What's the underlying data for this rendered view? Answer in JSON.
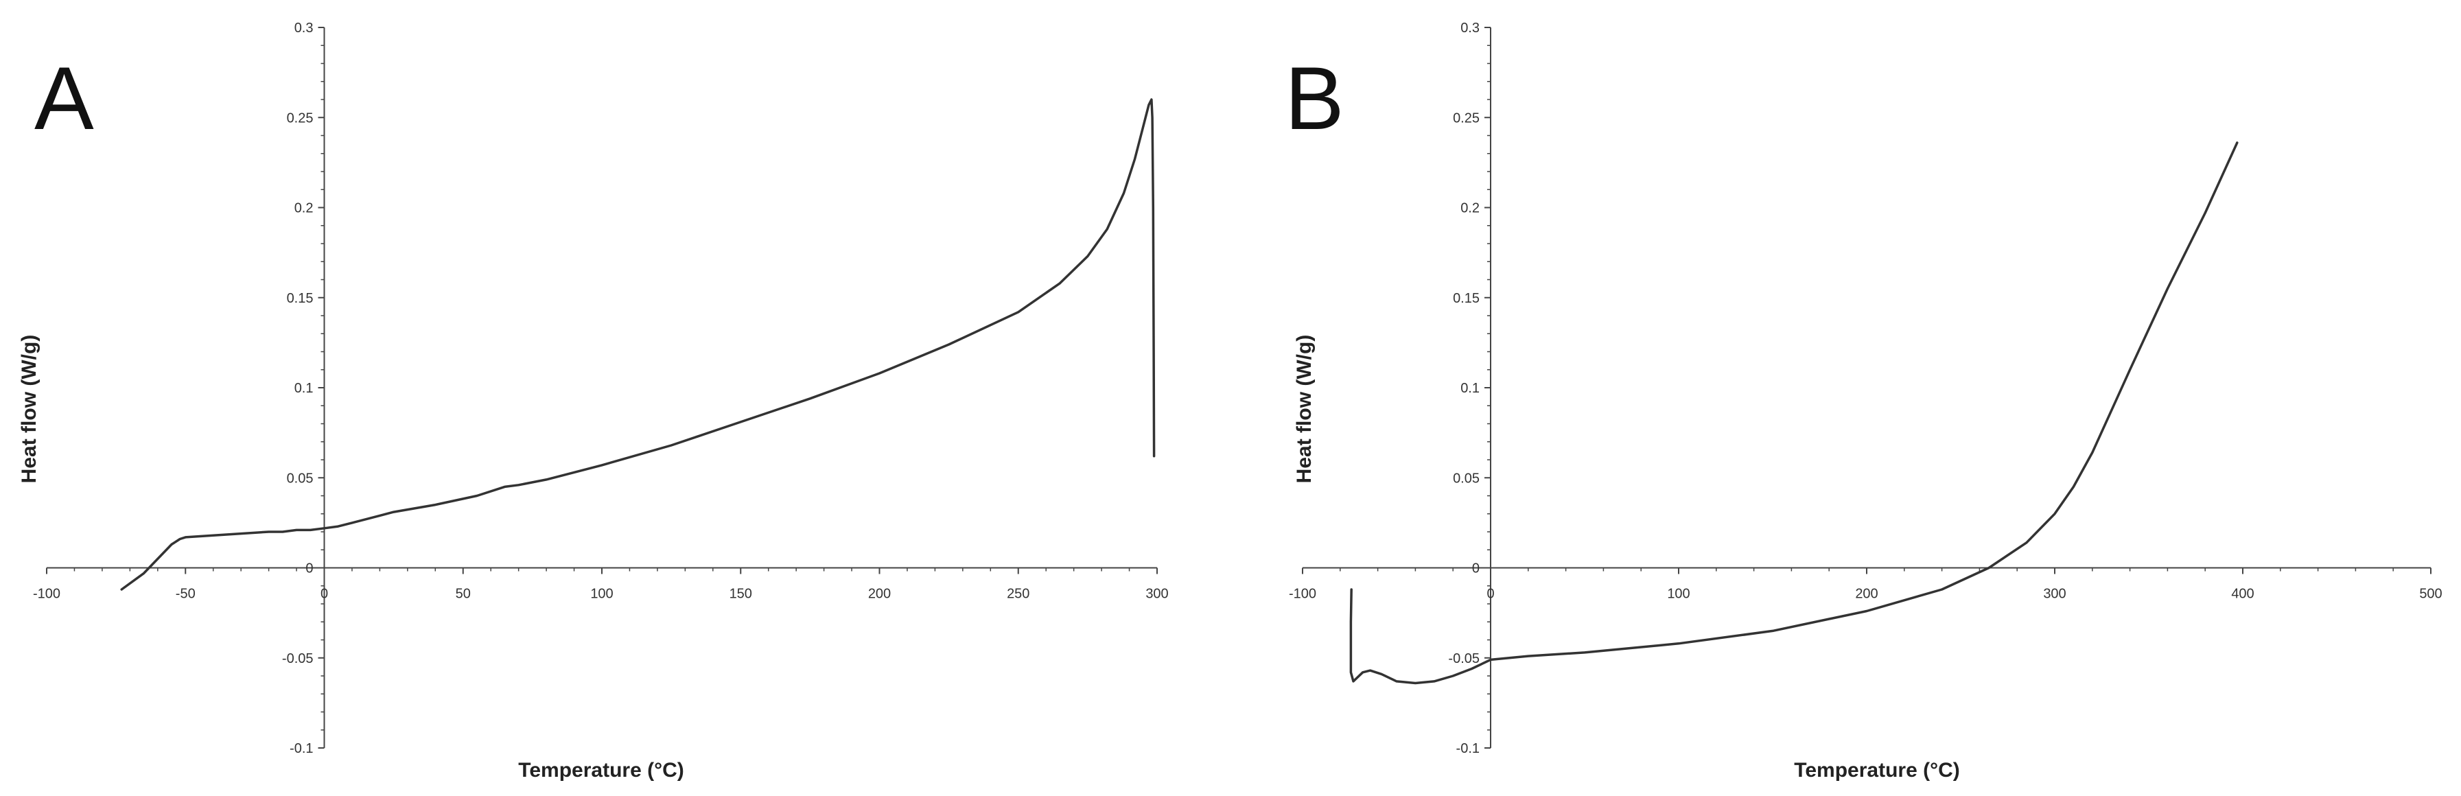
{
  "chart_data": [
    {
      "type": "line",
      "panel_label": "A",
      "xlabel": "Temperature (°C)",
      "ylabel": "Heat flow (W/g)",
      "xlim": [
        -100,
        300
      ],
      "ylim": [
        -0.1,
        0.3
      ],
      "x_ticks": [
        -100,
        -50,
        0,
        50,
        100,
        150,
        200,
        250,
        300
      ],
      "y_ticks": [
        -0.1,
        -0.05,
        0,
        0.05,
        0.1,
        0.15,
        0.2,
        0.25,
        0.3
      ],
      "x_tick_labels": [
        "-100",
        "-50",
        "0",
        "50",
        "100",
        "150",
        "200",
        "250",
        "300"
      ],
      "y_tick_labels": [
        "-0.1",
        "-0.05",
        "0",
        "0.05",
        "0.1",
        "0.15",
        "0.2",
        "0.25",
        "0.3"
      ],
      "grid": false,
      "line_color": "#333333",
      "series": [
        {
          "x": [
            -73,
            -65,
            -60,
            -55,
            -52,
            -50,
            -40,
            -30,
            -20,
            -15,
            -10,
            -5,
            0,
            5,
            10,
            20,
            25,
            40,
            55,
            65,
            70,
            80,
            100,
            125,
            150,
            175,
            200,
            225,
            250,
            265,
            275,
            282,
            288,
            292,
            295,
            297,
            298,
            298.3,
            298.6,
            298.8,
            298.9
          ],
          "y": [
            -0.012,
            -0.003,
            0.005,
            0.013,
            0.016,
            0.017,
            0.018,
            0.019,
            0.02,
            0.02,
            0.021,
            0.021,
            0.022,
            0.023,
            0.025,
            0.029,
            0.031,
            0.035,
            0.04,
            0.045,
            0.046,
            0.049,
            0.057,
            0.068,
            0.081,
            0.094,
            0.108,
            0.124,
            0.142,
            0.158,
            0.173,
            0.188,
            0.208,
            0.227,
            0.245,
            0.257,
            0.26,
            0.25,
            0.2,
            0.12,
            0.062
          ]
        }
      ]
    },
    {
      "type": "line",
      "panel_label": "B",
      "xlabel": "Temperature (°C)",
      "ylabel": "Heat flow (W/g)",
      "xlim": [
        -100,
        500
      ],
      "ylim": [
        -0.1,
        0.3
      ],
      "x_ticks": [
        -100,
        0,
        100,
        200,
        300,
        400,
        500
      ],
      "y_ticks": [
        -0.1,
        -0.05,
        0,
        0.05,
        0.1,
        0.15,
        0.2,
        0.25,
        0.3
      ],
      "x_tick_labels": [
        "-100",
        "0",
        "100",
        "200",
        "300",
        "400",
        "500"
      ],
      "y_tick_labels": [
        "-0.1",
        "-0.05",
        "0",
        "0.05",
        "0.1",
        "0.15",
        "0.2",
        "0.25",
        "0.3"
      ],
      "grid": false,
      "line_color": "#333333",
      "series": [
        {
          "x": [
            -74,
            -74.3,
            -74.3,
            -73,
            -71,
            -68,
            -64,
            -58,
            -50,
            -40,
            -30,
            -20,
            -10,
            0,
            10,
            20,
            50,
            100,
            150,
            200,
            240,
            265,
            285,
            300,
            310,
            320,
            340,
            360,
            380,
            397
          ],
          "y": [
            -0.012,
            -0.03,
            -0.058,
            -0.063,
            -0.061,
            -0.058,
            -0.057,
            -0.059,
            -0.063,
            -0.064,
            -0.063,
            -0.06,
            -0.056,
            -0.051,
            -0.05,
            -0.049,
            -0.047,
            -0.042,
            -0.035,
            -0.024,
            -0.012,
            0.0,
            0.014,
            0.03,
            0.045,
            0.064,
            0.11,
            0.155,
            0.197,
            0.236
          ]
        }
      ]
    }
  ]
}
